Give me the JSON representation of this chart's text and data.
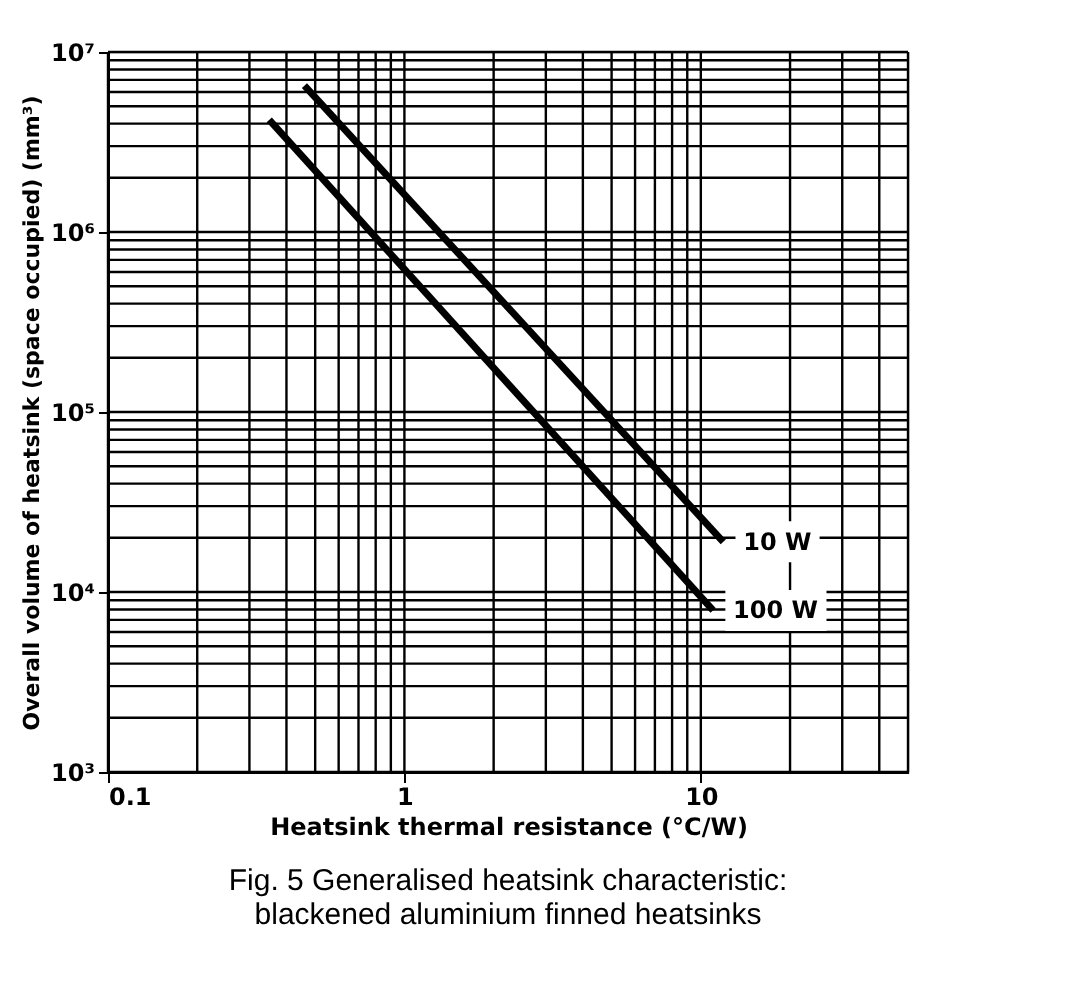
{
  "chart_data": {
    "type": "line",
    "title": "Fig. 5  Generalised heatsink characteristic: blackened aluminium finned heatsinks",
    "xlabel": "Heatsink thermal resistance (°C/W)",
    "ylabel": "Overall volume of heatsink (space occupied) (mm³)",
    "log": "xy",
    "grid": true,
    "legend": false,
    "marker": "none",
    "line_style": "solid",
    "xlim": [
      0.1,
      50
    ],
    "ylim": [
      1000,
      10000000
    ],
    "xticks": [
      0.1,
      1,
      10
    ],
    "yticks": [
      {
        "value": 1000,
        "label": "10³"
      },
      {
        "value": 10000,
        "label": "10⁴"
      },
      {
        "value": 100000,
        "label": "10⁵"
      },
      {
        "value": 1000000,
        "label": "10⁶"
      },
      {
        "value": 10000000,
        "label": "10⁷"
      }
    ],
    "series": [
      {
        "name": "10 W",
        "color": "#000000",
        "x": [
          0.46,
          11.9
        ],
        "values": [
          6500000,
          19000
        ]
      },
      {
        "name": "100 W",
        "color": "#000000",
        "x": [
          0.35,
          11
        ],
        "values": [
          4200000,
          7900
        ]
      }
    ]
  }
}
